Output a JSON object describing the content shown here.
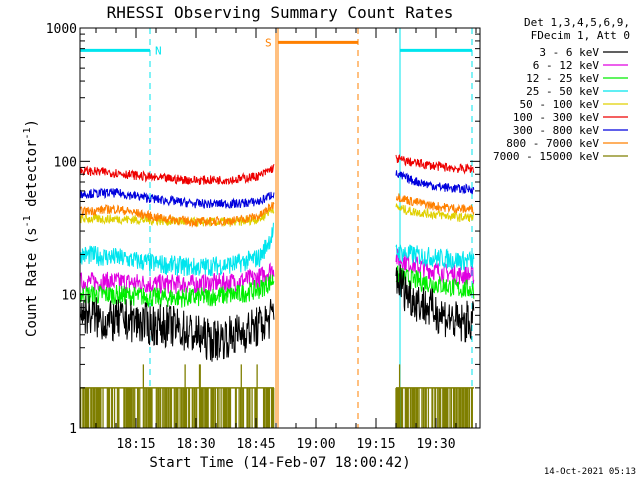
{
  "chart_data": {
    "type": "line",
    "title": "RHESSI Observing Summary Count Rates",
    "xlabel": "Start Time (14-Feb-07 18:00:42)",
    "ylabel_main": "Count Rate (s",
    "ylabel_sup1": "-1",
    "ylabel_mid": " detector",
    "ylabel_sup2": "-1",
    "ylabel_end": ")",
    "x_unit": "minutes after 18:00",
    "xlim": [
      1,
      101
    ],
    "ylim": [
      1,
      1000
    ],
    "y_scale": "log",
    "grid": false,
    "legend_position": "right",
    "x_ticks": [
      {
        "t": 15,
        "label": "18:15"
      },
      {
        "t": 30,
        "label": "18:30"
      },
      {
        "t": 45,
        "label": "18:45"
      },
      {
        "t": 60,
        "label": "19:00"
      },
      {
        "t": 75,
        "label": "19:15"
      },
      {
        "t": 90,
        "label": "19:30"
      }
    ],
    "y_ticks": [
      {
        "v": 1,
        "label": "1"
      },
      {
        "v": 10,
        "label": "10"
      },
      {
        "v": 100,
        "label": "100"
      },
      {
        "v": 1000,
        "label": "1000"
      }
    ],
    "legend_header": [
      "Det 1,3,4,5,6,9,",
      "FDecim 1, Att 0"
    ],
    "series": [
      {
        "name": "3 - 6 keV",
        "color": "#000000",
        "segments": [
          {
            "x": [
              1,
              8,
              12,
              18,
              24,
              30,
              34,
              40,
              46,
              49.5
            ],
            "y": [
              7.5,
              6.2,
              6.5,
              6.0,
              5.8,
              5.0,
              4.5,
              5.0,
              5.8,
              7.0
            ]
          },
          {
            "x": [
              80,
              82,
              84,
              88,
              92,
              96,
              99.5
            ],
            "y": [
              14,
              11,
              9.5,
              8.0,
              7.0,
              6.0,
              6.5
            ]
          }
        ]
      },
      {
        "name": "6 - 12 keV",
        "color": "#e000e0",
        "segments": [
          {
            "x": [
              1,
              10,
              20,
              30,
              40,
              46,
              49.5
            ],
            "y": [
              12.5,
              12.5,
              12.0,
              12.0,
              12.5,
              13.5,
              16
            ]
          },
          {
            "x": [
              80,
              84,
              90,
              96,
              99.5
            ],
            "y": [
              19,
              17,
              15,
              14,
              14
            ]
          }
        ]
      },
      {
        "name": "12 - 25 keV",
        "color": "#00ee00",
        "segments": [
          {
            "x": [
              1,
              10,
              20,
              30,
              40,
              46,
              49.5
            ],
            "y": [
              10,
              10,
              9.5,
              9.5,
              10,
              11,
              13
            ]
          },
          {
            "x": [
              80,
              84,
              90,
              96,
              99.5
            ],
            "y": [
              14,
              13,
              12,
              11,
              11
            ]
          }
        ]
      },
      {
        "name": "25 - 50 keV",
        "color": "#00e5ee",
        "segments": [
          {
            "x": [
              1,
              10,
              20,
              30,
              40,
              46,
              49.5
            ],
            "y": [
              20,
              19,
              17,
              16,
              17,
              19,
              30
            ]
          },
          {
            "x": [
              80,
              84,
              90,
              96,
              99.5
            ],
            "y": [
              21,
              20,
              19,
              18,
              18
            ]
          }
        ]
      },
      {
        "name": "50 - 100 keV",
        "color": "#e0d000",
        "segments": [
          {
            "x": [
              1,
              10,
              20,
              30,
              40,
              46,
              49.5
            ],
            "y": [
              37,
              37,
              36,
              35,
              35,
              37,
              45
            ]
          },
          {
            "x": [
              80,
              84,
              90,
              96,
              99.5
            ],
            "y": [
              45,
              42,
              40,
              38,
              38
            ]
          }
        ]
      },
      {
        "name": "100 - 300 keV",
        "color": "#ee0000",
        "segments": [
          {
            "x": [
              1,
              10,
              20,
              30,
              40,
              46,
              49.5
            ],
            "y": [
              85,
              82,
              75,
              72,
              73,
              78,
              90
            ]
          },
          {
            "x": [
              80,
              84,
              90,
              96,
              99.5
            ],
            "y": [
              105,
              98,
              92,
              88,
              88
            ]
          }
        ]
      },
      {
        "name": "300 - 800 keV",
        "color": "#0000dd",
        "segments": [
          {
            "x": [
              1,
              10,
              20,
              30,
              40,
              46,
              49.5
            ],
            "y": [
              57,
              58,
              52,
              48,
              48,
              50,
              58
            ]
          },
          {
            "x": [
              80,
              84,
              90,
              96,
              99.5
            ],
            "y": [
              80,
              72,
              65,
              62,
              62
            ]
          }
        ]
      },
      {
        "name": "800 - 7000 keV",
        "color": "#ff8000",
        "segments": [
          {
            "x": [
              1,
              10,
              20,
              30,
              40,
              46,
              49.5
            ],
            "y": [
              42,
              44,
              38,
              35,
              36,
              39,
              48
            ]
          },
          {
            "x": [
              80,
              84,
              90,
              96,
              99.5
            ],
            "y": [
              55,
              50,
              46,
              44,
              44
            ]
          }
        ]
      },
      {
        "name": "7000 - 15000 keV",
        "color": "#7f7f00",
        "segments": [
          {
            "x": [
              1,
              49.5
            ],
            "y": [
              2,
              2
            ]
          },
          {
            "x": [
              80,
              99.5
            ],
            "y": [
              2,
              2
            ]
          }
        ]
      }
    ],
    "annotations": [
      {
        "kind": "band",
        "label": "N",
        "color": "#00e5ee",
        "x0": 1,
        "x1": 18.5,
        "level": 680
      },
      {
        "kind": "band",
        "label": "S",
        "color": "#ff8000",
        "x0": 50.5,
        "x1": 70.5,
        "level": 780
      },
      {
        "kind": "band",
        "label": "",
        "color": "#00e5ee",
        "x0": 81,
        "x1": 99,
        "level": 680
      }
    ],
    "vlines": [
      {
        "t": 1,
        "color": "#00e5ee",
        "dash": false
      },
      {
        "t": 18.5,
        "color": "#00e5ee",
        "dash": true
      },
      {
        "t": 50,
        "color": "#ff8000",
        "dash": false
      },
      {
        "t": 50.5,
        "color": "#ff8000",
        "dash": false
      },
      {
        "t": 70.5,
        "color": "#ff8000",
        "dash": true
      },
      {
        "t": 81,
        "color": "#00e5ee",
        "dash": false
      },
      {
        "t": 99,
        "color": "#00e5ee",
        "dash": true
      }
    ],
    "timestamp": "14-Oct-2021 05:13"
  }
}
